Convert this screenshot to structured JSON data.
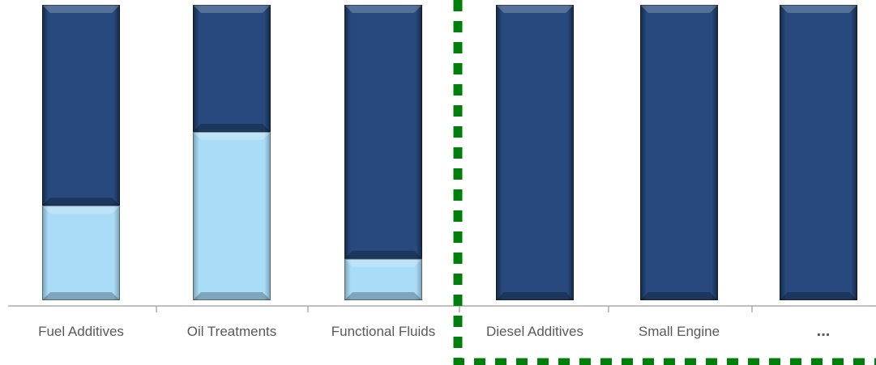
{
  "chart_data": {
    "type": "bar",
    "stacked": true,
    "normalized": true,
    "categories": [
      "Fuel Additives",
      "Oil Treatments",
      "Functional Fluids",
      "Diesel Additives",
      "Small Engine",
      "..."
    ],
    "series": [
      {
        "values": [
          0.32,
          0.57,
          0.14,
          0,
          0,
          0
        ],
        "color": "#a9dcf7"
      },
      {
        "values": [
          0.68,
          0.43,
          0.86,
          1,
          1,
          1
        ],
        "color": "#27497d"
      }
    ],
    "ylim": [
      0,
      1
    ],
    "title": "",
    "xlabel": "",
    "ylabel": "",
    "grid": false,
    "legend": "none",
    "highlight": {
      "from_category": "Diesel Additives",
      "to_category": "...",
      "style": "dotted",
      "color": "#00800a"
    }
  }
}
